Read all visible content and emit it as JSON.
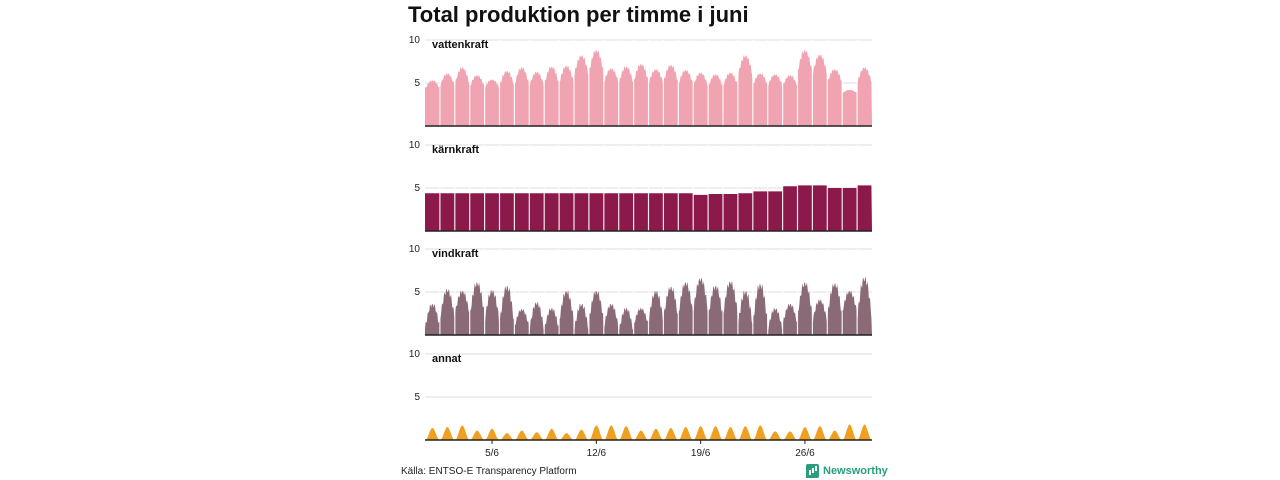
{
  "chart_data": {
    "type": "area",
    "title": "Total produktion per timme i juni",
    "xlabel": "",
    "ylabel": "",
    "ylim": [
      0,
      10
    ],
    "yticks": [
      5,
      10
    ],
    "x_tick_labels": [
      "5/6",
      "12/6",
      "19/6",
      "26/6"
    ],
    "x_tick_days": [
      5,
      12,
      19,
      26
    ],
    "xlim_days": [
      1,
      30
    ],
    "resolution": "daily peak (hourly profile shown per day)",
    "grid": true,
    "series": [
      {
        "name": "vattenkraft",
        "color": "#f0a3b0",
        "daily_peak": [
          5.3,
          6.1,
          6.8,
          5.9,
          5.4,
          6.4,
          6.8,
          6.3,
          6.9,
          7.0,
          8.2,
          8.8,
          6.7,
          6.9,
          7.2,
          6.6,
          7.1,
          6.5,
          6.2,
          6.0,
          6.2,
          8.2,
          6.1,
          6.0,
          5.9,
          8.8,
          8.3,
          6.6,
          4.2,
          6.8
        ],
        "daily_min": [
          4.3,
          4.6,
          4.8,
          4.5,
          4.4,
          4.6,
          4.7,
          4.6,
          4.8,
          4.9,
          5.8,
          6.2,
          5.0,
          4.9,
          5.1,
          4.9,
          5.0,
          4.8,
          4.6,
          4.5,
          4.6,
          5.8,
          4.7,
          4.6,
          4.6,
          6.2,
          5.9,
          5.0,
          3.8,
          4.9
        ]
      },
      {
        "name": "kärnkraft",
        "color": "#8b1a4a",
        "daily_peak": [
          4.4,
          4.4,
          4.4,
          4.4,
          4.4,
          4.4,
          4.4,
          4.4,
          4.4,
          4.4,
          4.4,
          4.4,
          4.4,
          4.4,
          4.4,
          4.4,
          4.4,
          4.4,
          4.2,
          4.3,
          4.3,
          4.4,
          4.6,
          4.6,
          5.2,
          5.3,
          5.3,
          5.0,
          5.0,
          5.3
        ],
        "daily_min": [
          4.4,
          4.4,
          4.4,
          4.4,
          4.4,
          4.4,
          4.4,
          4.4,
          4.4,
          4.4,
          4.4,
          4.4,
          4.4,
          4.4,
          4.4,
          4.4,
          4.4,
          4.4,
          4.2,
          4.3,
          4.3,
          4.4,
          4.6,
          4.6,
          5.2,
          5.3,
          5.3,
          5.0,
          5.0,
          5.3
        ]
      },
      {
        "name": "vindkraft",
        "color": "#8a6a76",
        "daily_peak": [
          3.6,
          5.3,
          5.1,
          6.1,
          5.2,
          5.7,
          3.0,
          3.8,
          3.1,
          5.1,
          3.6,
          5.1,
          3.6,
          3.1,
          3.1,
          5.1,
          5.6,
          6.1,
          6.6,
          5.7,
          6.2,
          5.1,
          5.9,
          3.1,
          3.6,
          6.1,
          4.1,
          6.0,
          5.1,
          6.7
        ],
        "daily_min": [
          0.8,
          1.8,
          2.4,
          2.2,
          1.6,
          1.2,
          0.9,
          0.5,
          0.6,
          1.5,
          0.4,
          1.7,
          0.8,
          0.3,
          1.1,
          1.6,
          1.9,
          2.3,
          2.7,
          2.0,
          2.3,
          1.0,
          1.3,
          0.5,
          1.2,
          2.2,
          1.5,
          2.1,
          2.6,
          1.8
        ]
      },
      {
        "name": "annat",
        "color": "#f0a020",
        "daily_peak": [
          1.4,
          1.5,
          1.7,
          1.1,
          1.3,
          0.8,
          1.1,
          0.9,
          1.3,
          0.8,
          1.2,
          1.7,
          1.7,
          1.6,
          1.1,
          1.3,
          1.4,
          1.5,
          1.6,
          1.6,
          1.5,
          1.6,
          1.7,
          1.0,
          1.0,
          1.5,
          1.6,
          1.1,
          1.8,
          1.8
        ],
        "daily_min": [
          0,
          0,
          0,
          0,
          0,
          0,
          0,
          0,
          0,
          0,
          0,
          0,
          0,
          0,
          0,
          0,
          0,
          0,
          0,
          0,
          0,
          0,
          0,
          0,
          0,
          0,
          0,
          0,
          0,
          0
        ]
      }
    ]
  },
  "footer": {
    "source": "Källa: ENTSO-E Transparency Platform",
    "brand": "Newsworthy"
  }
}
